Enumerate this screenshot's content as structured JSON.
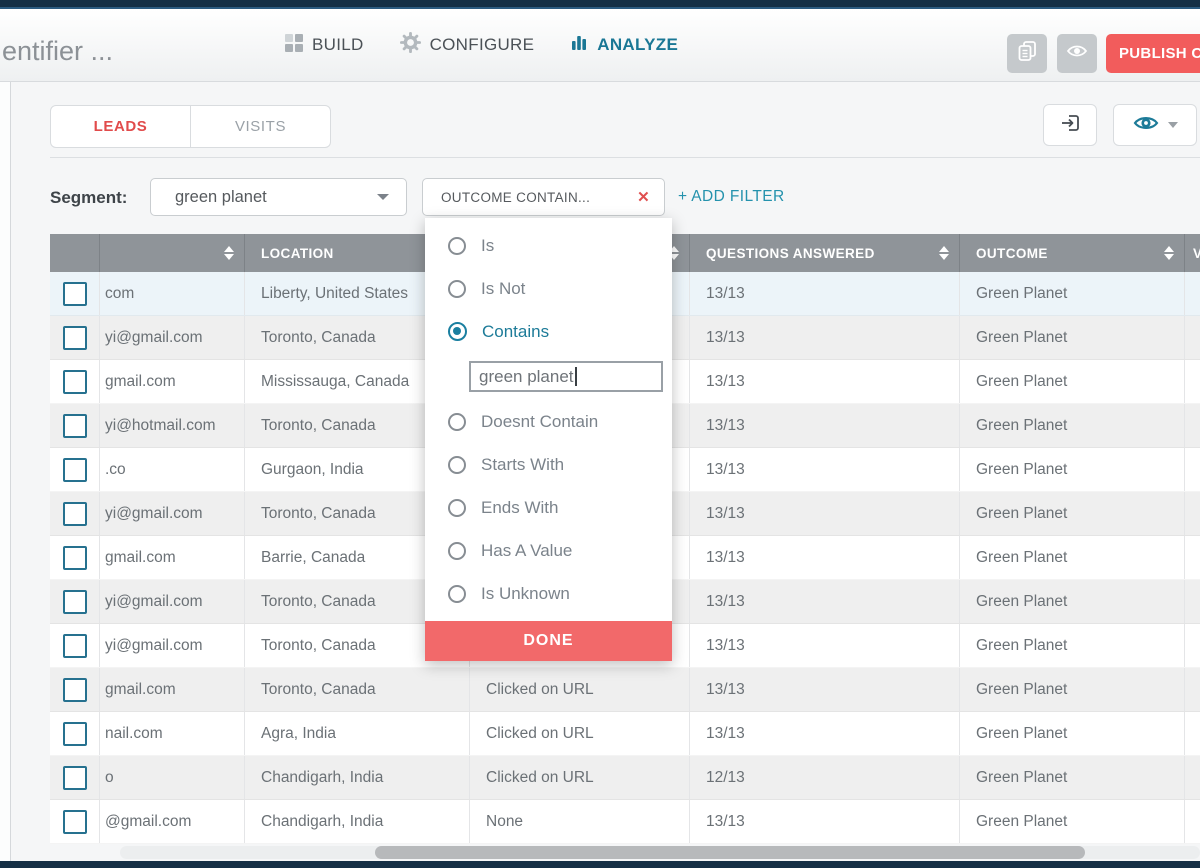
{
  "header": {
    "title": "entifier ...",
    "nav": [
      {
        "label": "BUILD",
        "icon": "grid-icon"
      },
      {
        "label": "CONFIGURE",
        "icon": "gear-icon"
      },
      {
        "label": "ANALYZE",
        "icon": "bar-chart-icon",
        "active": true
      }
    ],
    "publish_label": "PUBLISH CH"
  },
  "toolbar": {
    "tabs": [
      {
        "label": "LEADS",
        "active": true
      },
      {
        "label": "VISITS",
        "active": false
      }
    ]
  },
  "filter_bar": {
    "segment_label": "Segment:",
    "segment_value": "green planet",
    "filter_chip": "OUTCOME CONTAIN...",
    "remove_filter_icon": "close-icon",
    "add_filter": "+ ADD FILTER"
  },
  "filter_dropdown": {
    "options": [
      "Is",
      "Is Not",
      "Contains",
      "Doesnt Contain",
      "Starts With",
      "Ends With",
      "Has A Value",
      "Is Unknown"
    ],
    "selected": "Contains",
    "value": "green planet",
    "done_label": "DONE"
  },
  "table": {
    "columns": [
      {
        "label": "",
        "sortable": false
      },
      {
        "label": "",
        "sortable": true
      },
      {
        "label": "LOCATION",
        "sortable": true
      },
      {
        "label": "",
        "sortable": true
      },
      {
        "label": "QUESTIONS ANSWERED",
        "sortable": true
      },
      {
        "label": "OUTCOME",
        "sortable": true
      },
      {
        "label": "V",
        "sortable": true
      }
    ],
    "rows": [
      {
        "email": "com",
        "location": "Liberty, United States",
        "action": "",
        "questions": "13/13",
        "outcome": "Green Planet",
        "highlight": true
      },
      {
        "email": "yi@gmail.com",
        "location": "Toronto, Canada",
        "action": "",
        "questions": "13/13",
        "outcome": "Green Planet"
      },
      {
        "email": "gmail.com",
        "location": "Mississauga, Canada",
        "action": "",
        "questions": "13/13",
        "outcome": "Green Planet"
      },
      {
        "email": "yi@hotmail.com",
        "location": "Toronto, Canada",
        "action": "",
        "questions": "13/13",
        "outcome": "Green Planet"
      },
      {
        "email": ".co",
        "location": "Gurgaon, India",
        "action": "",
        "questions": "13/13",
        "outcome": "Green Planet"
      },
      {
        "email": "yi@gmail.com",
        "location": "Toronto, Canada",
        "action": "",
        "questions": "13/13",
        "outcome": "Green Planet"
      },
      {
        "email": "gmail.com",
        "location": "Barrie, Canada",
        "action": "",
        "questions": "13/13",
        "outcome": "Green Planet"
      },
      {
        "email": "yi@gmail.com",
        "location": "Toronto, Canada",
        "action": "",
        "questions": "13/13",
        "outcome": "Green Planet"
      },
      {
        "email": "yi@gmail.com",
        "location": "Toronto, Canada",
        "action": "",
        "questions": "13/13",
        "outcome": "Green Planet"
      },
      {
        "email": "gmail.com",
        "location": "Toronto, Canada",
        "action": "Clicked on URL",
        "questions": "13/13",
        "outcome": "Green Planet"
      },
      {
        "email": "nail.com",
        "location": "Agra, India",
        "action": "Clicked on URL",
        "questions": "13/13",
        "outcome": "Green Planet"
      },
      {
        "email": "o",
        "location": "Chandigarh, India",
        "action": "Clicked on URL",
        "questions": "12/13",
        "outcome": "Green Planet"
      },
      {
        "email": "@gmail.com",
        "location": "Chandigarh, India",
        "action": "None",
        "questions": "13/13",
        "outcome": "Green Planet"
      }
    ]
  },
  "colors": {
    "accent_teal": "#1d7b98",
    "accent_red": "#f25c5c",
    "navy": "#152f45",
    "table_header_gray": "#8f9499"
  }
}
